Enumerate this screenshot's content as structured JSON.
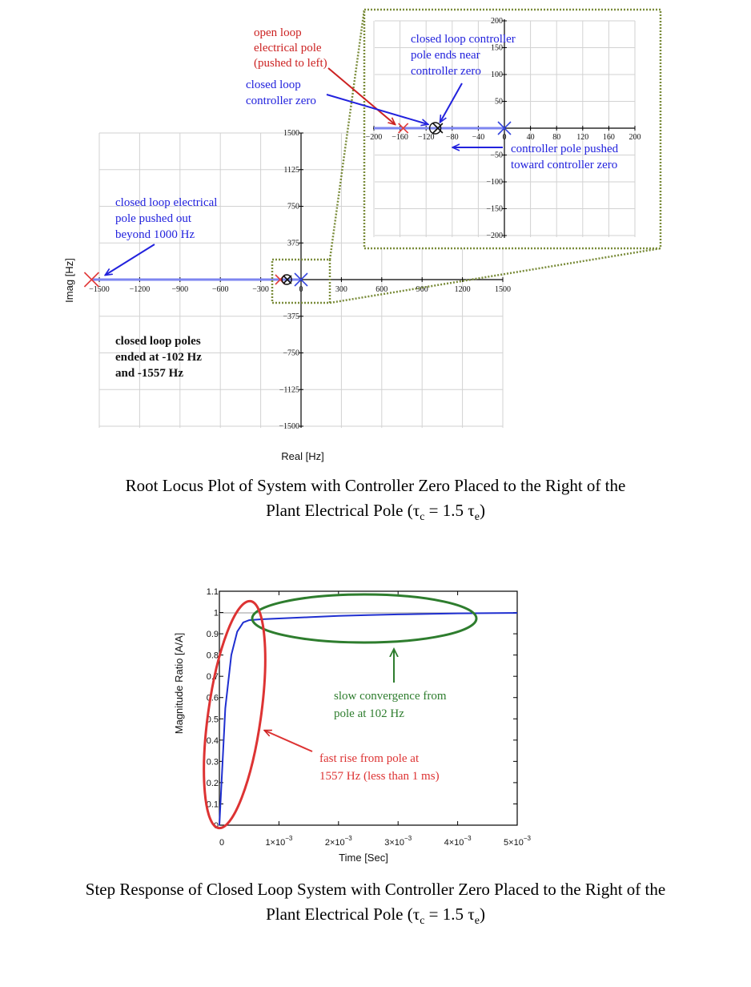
{
  "root_locus": {
    "ylabel": "Imag [Hz]",
    "xlabel": "Real [Hz]",
    "caption": {
      "line1": "Root Locus Plot of System with Controller Zero Placed to the Right of the",
      "line2_prefix": "Plant Electrical Pole (τ",
      "sub1": "c",
      "mid": " = 1.5 τ",
      "sub2": "e",
      "suffix": ")"
    },
    "annotations": {
      "electrical_pole": [
        "closed  loop electrical",
        "pole pushed out",
        "beyond 1000 Hz"
      ],
      "ended": [
        "closed  loop poles",
        "ended at -102 Hz",
        "and -1557 Hz"
      ],
      "open_loop": [
        "open loop",
        "electrical  pole",
        "(pushed to left)"
      ],
      "cl_zero": [
        "closed  loop",
        "controller zero"
      ],
      "cl_pole_ends": [
        "closed  loop controller",
        "pole ends near",
        "controller zero"
      ],
      "pushed": [
        "controller pole pushed",
        "toward controller zero"
      ]
    },
    "main_x_ticks": [
      "−1500",
      "−1200",
      "−900",
      "−600",
      "−300",
      "0",
      "300",
      "600",
      "900",
      "1200",
      "1500"
    ],
    "main_y_ticks": [
      "1500",
      "1125",
      "750",
      "375",
      "−375",
      "−750",
      "−1125",
      "−1500"
    ],
    "inset_x_ticks": [
      "−200",
      "−160",
      "−120",
      "−80",
      "−40",
      "0",
      "40",
      "80",
      "120",
      "160",
      "200"
    ],
    "inset_y_ticks": [
      "200",
      "150",
      "100",
      "50",
      "−50",
      "−100",
      "−150",
      "−200"
    ]
  },
  "step_response": {
    "ylabel": "Magnitude Ratio [A/A]",
    "xlabel": "Time [Sec]",
    "y_ticks": [
      "0",
      "0.1",
      "0.2",
      "0.3",
      "0.4",
      "0.5",
      "0.6",
      "0.7",
      "0.8",
      "0.9",
      "1",
      "1.1"
    ],
    "x_ticks_base": [
      "0",
      "1×10",
      "2×10",
      "3×10",
      "4×10",
      "5×10"
    ],
    "x_tick_exp": "−3",
    "annotations": {
      "slow": [
        "slow convergence from",
        "pole at 102 Hz"
      ],
      "fast": [
        "fast rise from pole at",
        "1557 Hz (less than 1 ms)"
      ]
    },
    "caption": {
      "line1": "Step Response of Closed Loop System with Controller Zero Placed to the Right of the",
      "line2_prefix": "Plant Electrical Pole (τ",
      "sub1": "c",
      "mid": " = 1.5 τ",
      "sub2": "e",
      "suffix": ")"
    }
  },
  "colors": {
    "annotation_blue": "#2222dd",
    "annotation_red": "#cc2222",
    "annotation_green": "#2e7d2e",
    "inset_frame": "#7a8c3a",
    "locus": "#7d86f0",
    "step_line": "#1f2fd0"
  },
  "chart_data": [
    {
      "type": "scatter",
      "title": "",
      "xlabel": "Real [Hz]",
      "ylabel": "Imag [Hz]",
      "xlim": [
        -1500,
        1500
      ],
      "ylim": [
        -1500,
        1500
      ],
      "grid": true,
      "series": [
        {
          "name": "",
          "marker": "x",
          "x": [
            -1557,
            -155,
            0
          ],
          "y": [
            0,
            0,
            0
          ]
        },
        {
          "name": "",
          "marker": "o",
          "x": [
            -106,
            -102
          ],
          "y": [
            0,
            0
          ]
        }
      ]
    },
    {
      "type": "line",
      "title": "",
      "xlabel": "Time [Sec]",
      "ylabel": "Magnitude Ratio [A/A]",
      "xlim": [
        0,
        0.005
      ],
      "ylim": [
        0,
        1.1
      ],
      "grid": false,
      "series": [
        {
          "name": "",
          "x": [
            0,
            0.0001,
            0.0002,
            0.0003,
            0.0004,
            0.0005,
            0.0007,
            0.001,
            0.0015,
            0.002,
            0.0025,
            0.003,
            0.004,
            0.005
          ],
          "y": [
            0,
            0.55,
            0.8,
            0.91,
            0.953,
            0.964,
            0.968,
            0.972,
            0.978,
            0.984,
            0.988,
            0.991,
            0.996,
            0.998
          ]
        }
      ]
    }
  ]
}
